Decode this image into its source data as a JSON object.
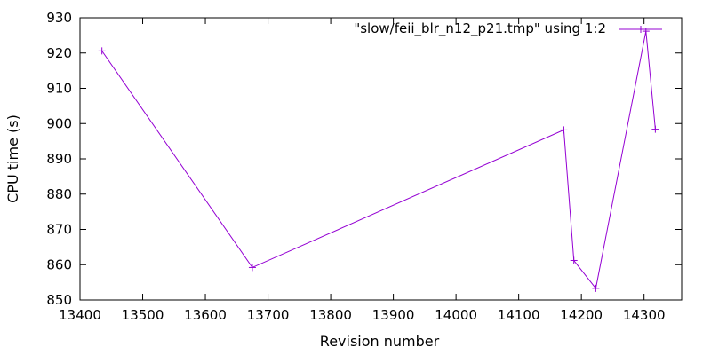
{
  "chart_data": {
    "type": "line",
    "title": "",
    "xlabel": "Revision number",
    "ylabel": "CPU time (s)",
    "xlim": [
      13400,
      14360
    ],
    "ylim": [
      850,
      930
    ],
    "xticks": [
      13400,
      13500,
      13600,
      13700,
      13800,
      13900,
      14000,
      14100,
      14200,
      14300
    ],
    "yticks": [
      850,
      860,
      870,
      880,
      890,
      900,
      910,
      920,
      930
    ],
    "grid": false,
    "legend_position": "top-right",
    "series": [
      {
        "name": "\"slow/feii_blr_n12_p21.tmp\" using 1:2",
        "color": "#9400d3",
        "marker": "plus",
        "points": [
          {
            "x": 13435,
            "y": 920.6
          },
          {
            "x": 13675,
            "y": 859.2
          },
          {
            "x": 14172,
            "y": 898.2
          },
          {
            "x": 14188,
            "y": 861.2
          },
          {
            "x": 14223,
            "y": 853.3
          },
          {
            "x": 14303,
            "y": 926.2
          },
          {
            "x": 14318,
            "y": 898.4
          }
        ]
      }
    ]
  }
}
